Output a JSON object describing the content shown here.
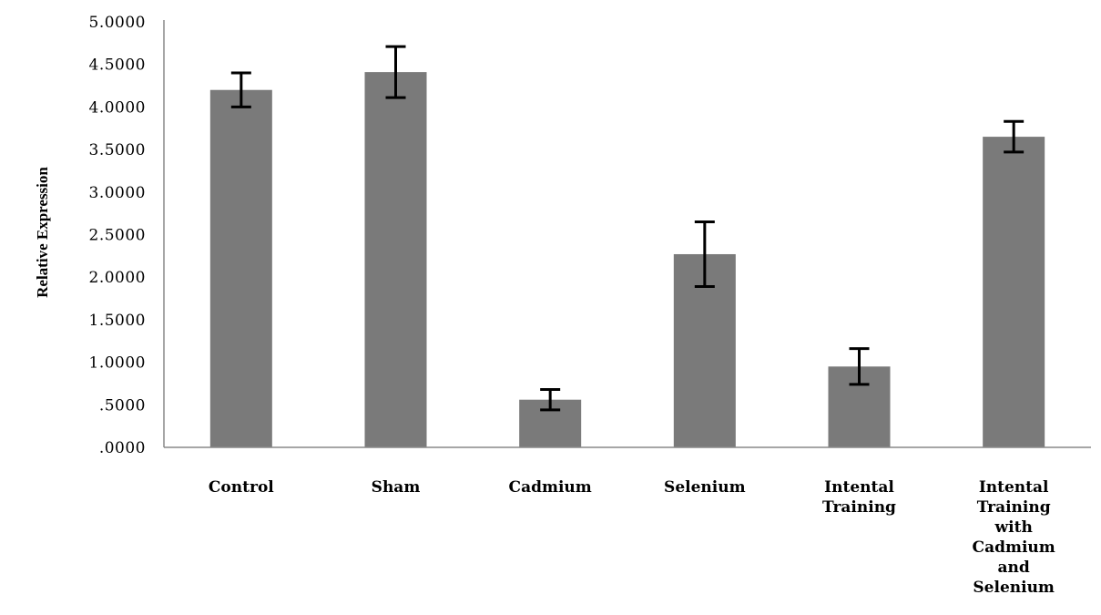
{
  "chart_data": {
    "type": "bar",
    "title": "",
    "xlabel": "",
    "ylabel": "Relative Expression",
    "ylim": [
      0,
      5
    ],
    "yticks": [
      ".0000",
      ".5000",
      "1.0000",
      "1.5000",
      "2.0000",
      "2.5000",
      "3.0000",
      "3.5000",
      "4.0000",
      "4.5000",
      "5.0000"
    ],
    "grid": false,
    "legend": "none",
    "categories": [
      [
        "Control"
      ],
      [
        "Sham"
      ],
      [
        "Cadmium"
      ],
      [
        "Selenium"
      ],
      [
        "Intental",
        "Training"
      ],
      [
        "Intental",
        "Training",
        "with",
        "Cadmium",
        "and",
        "Selenium"
      ]
    ],
    "values": [
      4.2,
      4.41,
      0.56,
      2.27,
      0.95,
      3.65
    ],
    "errors": [
      0.2,
      0.3,
      0.12,
      0.38,
      0.21,
      0.18
    ],
    "colors": {
      "bar": "#7a7a7a",
      "axis": "#888888",
      "error": "#000000"
    }
  }
}
